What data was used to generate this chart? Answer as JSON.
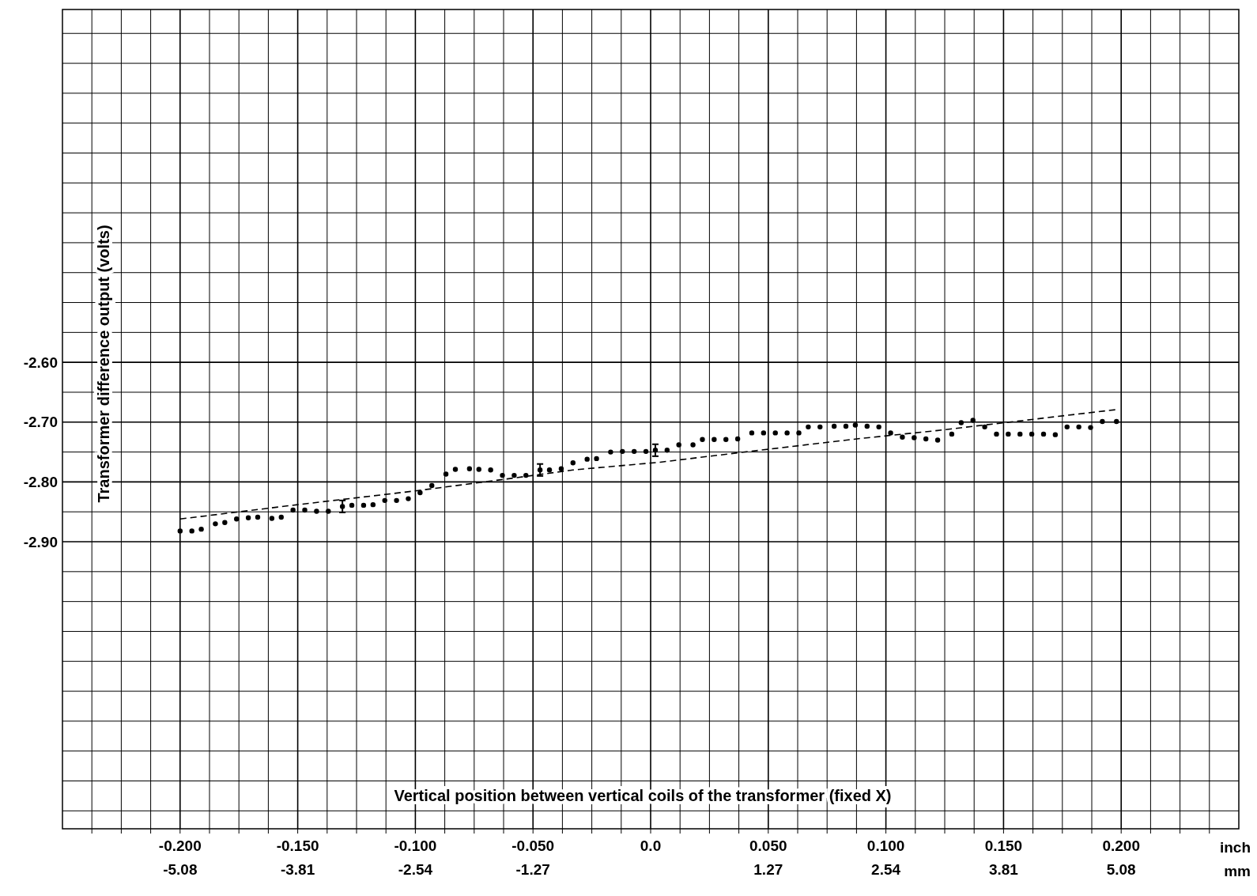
{
  "chart_data": {
    "type": "scatter",
    "xlabel": "Vertical position between vertical coils of the transformer (fixed X)",
    "ylabel": "Transformer difference output  (volts)",
    "xlim": [
      -0.25,
      0.25
    ],
    "ylim": [
      -3.38,
      -2.01
    ],
    "x2lim": [
      -6.35,
      6.35
    ],
    "xticks": [
      {
        "value": -0.2,
        "label": "-0.200"
      },
      {
        "value": -0.15,
        "label": "-0.150"
      },
      {
        "value": -0.1,
        "label": "-0.100"
      },
      {
        "value": -0.05,
        "label": "-0.050"
      },
      {
        "value": 0,
        "label": "0.0"
      },
      {
        "value": 0.05,
        "label": "0.050"
      },
      {
        "value": 0.1,
        "label": "0.100"
      },
      {
        "value": 0.15,
        "label": "0.150"
      },
      {
        "value": 0.2,
        "label": "0.200"
      },
      {
        "value": -0.2375,
        "label": null
      },
      {
        "value": -0.225,
        "label": null
      },
      {
        "value": -0.2125,
        "label": null
      },
      {
        "value": -0.1875,
        "label": null
      },
      {
        "value": -0.175,
        "label": null
      },
      {
        "value": -0.1625,
        "label": null
      },
      {
        "value": -0.1375,
        "label": null
      },
      {
        "value": -0.125,
        "label": null
      },
      {
        "value": -0.1125,
        "label": null
      },
      {
        "value": -0.0875,
        "label": null
      },
      {
        "value": -0.075,
        "label": null
      },
      {
        "value": -0.0625,
        "label": null
      },
      {
        "value": -0.0375,
        "label": null
      },
      {
        "value": -0.025,
        "label": null
      },
      {
        "value": -0.0125,
        "label": null
      },
      {
        "value": 0.0125,
        "label": null
      },
      {
        "value": 0.025,
        "label": null
      },
      {
        "value": 0.0375,
        "label": null
      },
      {
        "value": 0.0625,
        "label": null
      },
      {
        "value": 0.075,
        "label": null
      },
      {
        "value": 0.0875,
        "label": null
      },
      {
        "value": 0.1125,
        "label": null
      },
      {
        "value": 0.125,
        "label": null
      },
      {
        "value": 0.1375,
        "label": null
      },
      {
        "value": 0.1625,
        "label": null
      },
      {
        "value": 0.175,
        "label": null
      },
      {
        "value": 0.1875,
        "label": null
      },
      {
        "value": 0.2125,
        "label": null
      },
      {
        "value": 0.225,
        "label": null
      },
      {
        "value": 0.2375,
        "label": null
      }
    ],
    "x2ticks": [
      -5.08,
      -3.81,
      -2.54,
      -1.27,
      1.27,
      2.54,
      3.81,
      5.08
    ],
    "yticks": [
      {
        "value": -2.6,
        "label": "-2.60"
      },
      {
        "value": -2.7,
        "label": "-2.70"
      },
      {
        "value": -2.8,
        "label": "-2.80"
      },
      {
        "value": -2.9,
        "label": "-2.90"
      },
      {
        "value": -3.35,
        "label": null
      },
      {
        "value": -3.3,
        "label": null
      },
      {
        "value": -3.25,
        "label": null
      },
      {
        "value": -3.2,
        "label": null
      },
      {
        "value": -3.15,
        "label": null
      },
      {
        "value": -3.1,
        "label": null
      },
      {
        "value": -3.05,
        "label": null
      },
      {
        "value": -3.0,
        "label": null
      },
      {
        "value": -2.95,
        "label": null
      },
      {
        "value": -2.85,
        "label": null
      },
      {
        "value": -2.75,
        "label": null
      },
      {
        "value": -2.65,
        "label": null
      },
      {
        "value": -2.55,
        "label": null
      },
      {
        "value": -2.5,
        "label": null
      },
      {
        "value": -2.45,
        "label": null
      },
      {
        "value": -2.4,
        "label": null
      },
      {
        "value": -2.35,
        "label": null
      },
      {
        "value": -2.3,
        "label": null
      },
      {
        "value": -2.25,
        "label": null
      },
      {
        "value": -2.2,
        "label": null
      },
      {
        "value": -2.15,
        "label": null
      },
      {
        "value": -2.1,
        "label": null
      },
      {
        "value": -2.05,
        "label": null
      }
    ],
    "grid": true,
    "marker": "circle",
    "annotations": [
      "inch",
      "mm"
    ],
    "series": [
      {
        "color": "#000000",
        "x": [
          -0.2,
          -0.195,
          -0.191,
          -0.185,
          -0.181,
          -0.176,
          -0.171,
          -0.167,
          -0.161,
          -0.157,
          -0.152,
          -0.147,
          -0.142,
          -0.137,
          -0.131,
          -0.127,
          -0.122,
          -0.118,
          -0.113,
          -0.108,
          -0.103,
          -0.098,
          -0.093,
          -0.087,
          -0.083,
          -0.077,
          -0.073,
          -0.068,
          -0.063,
          -0.058,
          -0.053,
          -0.047,
          -0.043,
          -0.038,
          -0.033,
          -0.027,
          -0.023,
          -0.017,
          -0.012,
          -0.007,
          -0.002,
          0.002,
          0.007,
          0.012,
          0.018,
          0.022,
          0.027,
          0.032,
          0.037,
          0.043,
          0.048,
          0.053,
          0.058,
          0.063,
          0.067,
          0.072,
          0.078,
          0.083,
          0.087,
          0.092,
          0.097,
          0.102,
          0.107,
          0.112,
          0.117,
          0.122,
          0.128,
          0.132,
          0.137,
          0.142,
          0.147,
          0.152,
          0.157,
          0.162,
          0.167,
          0.172,
          0.177,
          0.182,
          0.187,
          0.192,
          0.198
        ],
        "values": [
          -2.882,
          -2.882,
          -2.879,
          -2.87,
          -2.868,
          -2.862,
          -2.86,
          -2.859,
          -2.861,
          -2.859,
          -2.847,
          -2.847,
          -2.849,
          -2.849,
          -2.841,
          -2.839,
          -2.839,
          -2.838,
          -2.831,
          -2.831,
          -2.828,
          -2.818,
          -2.806,
          -2.787,
          -2.779,
          -2.778,
          -2.779,
          -2.78,
          -2.789,
          -2.789,
          -2.789,
          -2.78,
          -2.78,
          -2.778,
          -2.768,
          -2.762,
          -2.761,
          -2.75,
          -2.749,
          -2.749,
          -2.749,
          -2.747,
          -2.747,
          -2.738,
          -2.738,
          -2.729,
          -2.729,
          -2.729,
          -2.728,
          -2.718,
          -2.718,
          -2.718,
          -2.718,
          -2.718,
          -2.708,
          -2.708,
          -2.707,
          -2.707,
          -2.705,
          -2.707,
          -2.708,
          -2.718,
          -2.725,
          -2.726,
          -2.728,
          -2.73,
          -2.72,
          -2.701,
          -2.697,
          -2.708,
          -2.72,
          -2.72,
          -2.72,
          -2.72,
          -2.72,
          -2.721,
          -2.708,
          -2.708,
          -2.709,
          -2.699,
          -2.699
        ],
        "errors": [
          null,
          null,
          null,
          null,
          null,
          null,
          null,
          null,
          null,
          null,
          null,
          null,
          null,
          null,
          0.01,
          null,
          null,
          null,
          null,
          null,
          null,
          null,
          null,
          null,
          null,
          null,
          null,
          null,
          null,
          null,
          null,
          0.01,
          null,
          null,
          null,
          null,
          null,
          null,
          null,
          null,
          null,
          0.01,
          null,
          null,
          null,
          null,
          null,
          null,
          null,
          null,
          null,
          null,
          null,
          null,
          null,
          null,
          null,
          null,
          null,
          null,
          null,
          null,
          null,
          null,
          null,
          null,
          null,
          null,
          null,
          null,
          null,
          null,
          null,
          null,
          null,
          null,
          null,
          null,
          null,
          null,
          null
        ]
      },
      {
        "type": "line",
        "color": "#000000",
        "line_style": "dashed",
        "marker": "none",
        "x": [
          -0.2,
          -0.15,
          -0.1,
          -0.061,
          -0.033,
          0.004,
          0.042,
          0.09,
          0.122,
          0.198
        ],
        "values": [
          -2.862,
          -2.838,
          -2.815,
          -2.795,
          -2.78,
          -2.767,
          -2.749,
          -2.727,
          -2.714,
          -2.679
        ]
      }
    ]
  }
}
